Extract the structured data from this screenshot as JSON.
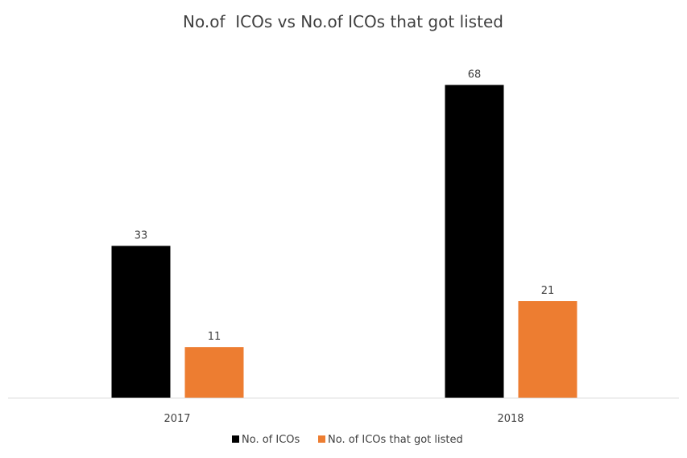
{
  "chart_data": {
    "type": "bar",
    "title": "No.of  ICOs vs No.of ICOs that got listed",
    "categories": [
      "2017",
      "2018"
    ],
    "series": [
      {
        "name": "No. of ICOs",
        "values": [
          33,
          68
        ],
        "color": "#000000"
      },
      {
        "name": "No. of ICOs that got listed",
        "values": [
          11,
          21
        ],
        "color": "#ED7D31"
      }
    ],
    "xlabel": "",
    "ylabel": "",
    "ylim": [
      0,
      80
    ],
    "grid": false,
    "legend": "bottom",
    "data_labels": true
  }
}
